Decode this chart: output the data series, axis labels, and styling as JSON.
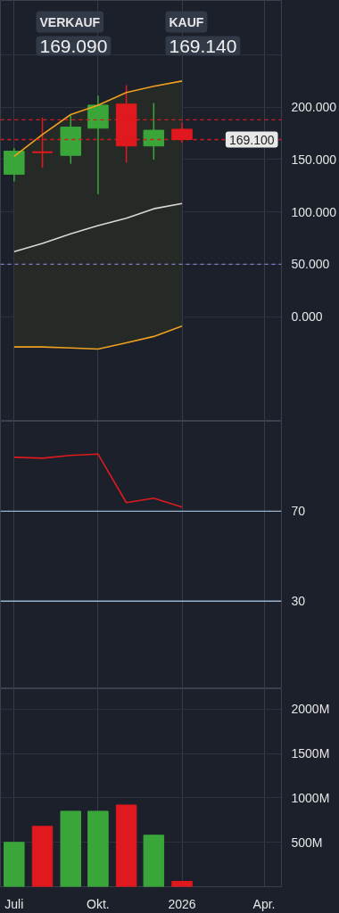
{
  "chart_data": [
    {
      "type": "candlestick",
      "x": [
        "2025-07",
        "2025-08",
        "2025-09",
        "2025-10",
        "2025-11",
        "2025-12",
        "2026-01"
      ],
      "ohlc": [
        [
          136,
          161,
          129,
          158
        ],
        [
          157,
          190,
          142,
          157
        ],
        [
          154,
          192,
          146,
          181
        ],
        [
          180,
          211,
          117,
          202
        ],
        [
          203,
          221,
          147,
          163
        ],
        [
          163,
          204,
          150,
          178
        ],
        [
          179,
          185,
          166,
          169.1
        ]
      ],
      "colors": [
        "#3aa63a",
        "#e0191e",
        "#3aa63a",
        "#3aa63a",
        "#e0191e",
        "#3aa63a",
        "#e0191e"
      ],
      "series": [
        {
          "type": "line",
          "color": "#f0a020",
          "values": [
            153,
            174,
            193,
            202,
            214,
            220,
            225
          ]
        },
        {
          "type": "line",
          "color": "#d8d8d8",
          "values": [
            62,
            70,
            79,
            87,
            94,
            103,
            108
          ],
          "lower": [
            -29,
            -29,
            -30,
            -31,
            -25,
            -19,
            -9
          ],
          "upper": [
            153,
            174,
            193,
            202,
            214,
            220,
            225
          ]
        },
        {
          "type": "line",
          "color": "#f0a020",
          "values": [
            -29,
            -29,
            -30,
            -31,
            -25,
            -19,
            -9
          ]
        }
      ],
      "xlim": [
        "2025-06-16",
        "2026-04-20"
      ],
      "xticks": [
        {
          "value": "2025-07",
          "label": null
        },
        {
          "value": "2025-10",
          "label": null
        },
        {
          "value": "2026-01",
          "label": null
        },
        {
          "value": "2026-04",
          "label": null
        }
      ],
      "ylim": [
        -100,
        302
      ],
      "yticks": [
        {
          "value": 0,
          "label": "0.000"
        },
        {
          "value": 50,
          "label": "50.000"
        },
        {
          "value": 100,
          "label": "100.000"
        },
        {
          "value": 150,
          "label": "150.000"
        },
        {
          "value": 200,
          "label": "200.000"
        },
        {
          "value": 250,
          "label": null
        }
      ],
      "ref_lines": [
        {
          "axis": "y",
          "value": 188,
          "label": null,
          "color": "#e0191e",
          "line_style": "dashed"
        },
        {
          "axis": "y",
          "value": 169.1,
          "label": "169.100",
          "color": "#e0191e",
          "line_style": "dashed"
        },
        {
          "axis": "y",
          "value": 50,
          "label": null,
          "color": "#8a78c8",
          "line_style": "dashed"
        }
      ],
      "annotations": [
        "VERKAUF",
        "169.090",
        "KAUF",
        "169.140"
      ],
      "grid": true,
      "tick_labels": "y"
    },
    {
      "type": "line",
      "x": [
        "2025-07",
        "2025-08",
        "2025-09",
        "2025-10",
        "2025-11",
        "2025-12",
        "2026-01"
      ],
      "series": [
        {
          "color": "#e0191e",
          "values": [
            94,
            93.6,
            94.8,
            95.4,
            73.8,
            75.8,
            71.8
          ]
        }
      ],
      "xlim": [
        "2025-06-16",
        "2026-04-20"
      ],
      "xticks": [
        {
          "value": "2025-07",
          "label": null
        },
        {
          "value": "2025-10",
          "label": null
        },
        {
          "value": "2026-01",
          "label": null
        },
        {
          "value": "2026-04",
          "label": null
        }
      ],
      "ylim": [
        -9,
        110
      ],
      "yticks": [
        30,
        70
      ],
      "ref_lines": [
        {
          "axis": "y",
          "value": 70,
          "label": null,
          "color": "#9ab4d0",
          "line_style": "solid"
        },
        {
          "axis": "y",
          "value": 30,
          "label": null,
          "color": "#9ab4d0",
          "line_style": "solid"
        }
      ],
      "grid": "x",
      "tick_labels": "y"
    },
    {
      "type": "bar",
      "x": [
        "2025-07",
        "2025-08",
        "2025-09",
        "2025-10",
        "2025-11",
        "2025-12",
        "2026-01"
      ],
      "values": [
        500,
        680,
        850,
        850,
        920,
        580,
        60
      ],
      "colors": [
        "#3aa63a",
        "#e0191e",
        "#3aa63a",
        "#3aa63a",
        "#e0191e",
        "#3aa63a",
        "#e0191e"
      ],
      "xlim": [
        "2025-06-16",
        "2026-04-20"
      ],
      "xticks": [
        {
          "value": "2025-07",
          "label": "Juli"
        },
        {
          "value": "2025-10",
          "label": "Okt."
        },
        {
          "value": "2026-01",
          "label": "2026"
        },
        {
          "value": "2026-04",
          "label": "Apr."
        }
      ],
      "ylim": [
        0,
        2230
      ],
      "yticks": [
        {
          "value": 500,
          "label": "500M"
        },
        {
          "value": 1000,
          "label": "1000M"
        },
        {
          "value": 1500,
          "label": "1500M"
        },
        {
          "value": 2000,
          "label": "2000M"
        }
      ],
      "grid": true
    }
  ]
}
